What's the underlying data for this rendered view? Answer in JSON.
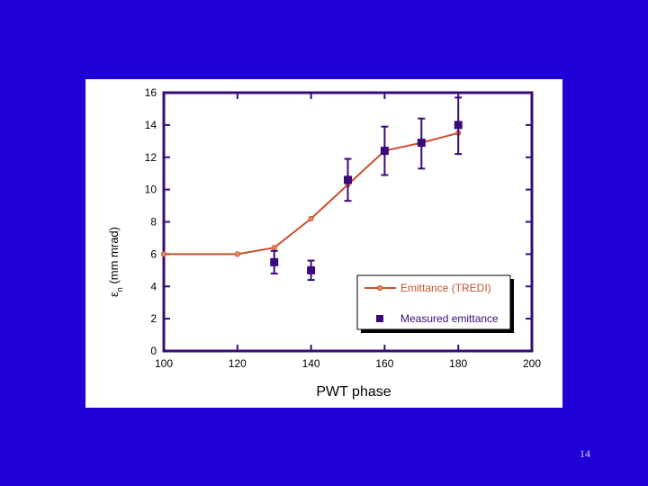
{
  "chart_data": {
    "type": "line",
    "xlabel": "PWT  phase",
    "ylabel_prefix": "ε",
    "ylabel_sub": "n",
    "ylabel_suffix": " (mm mrad)",
    "xlim": [
      100,
      200
    ],
    "ylim": [
      0,
      16
    ],
    "xticks": [
      100,
      120,
      140,
      160,
      180,
      200
    ],
    "yticks": [
      0,
      2,
      4,
      6,
      8,
      10,
      12,
      14,
      16
    ],
    "grid": false,
    "legend_position": "bottom-right",
    "series": [
      {
        "name": "Emittance (TREDI)",
        "kind": "line",
        "color": "#c8502d",
        "x": [
          100,
          120,
          130,
          140,
          150,
          160,
          170,
          180
        ],
        "y": [
          6.0,
          6.0,
          6.4,
          8.2,
          10.3,
          12.4,
          12.9,
          13.5
        ]
      },
      {
        "name": "Measured emittance",
        "kind": "scatter",
        "color": "#3a0a78",
        "x": [
          130,
          140,
          150,
          160,
          170,
          180
        ],
        "y": [
          5.5,
          5.0,
          10.6,
          12.4,
          12.9,
          14.0
        ],
        "err_low": [
          4.8,
          4.4,
          9.3,
          10.9,
          11.3,
          12.2
        ],
        "err_high": [
          6.2,
          5.6,
          11.9,
          13.9,
          14.4,
          15.7
        ]
      }
    ]
  },
  "page_number": "14"
}
